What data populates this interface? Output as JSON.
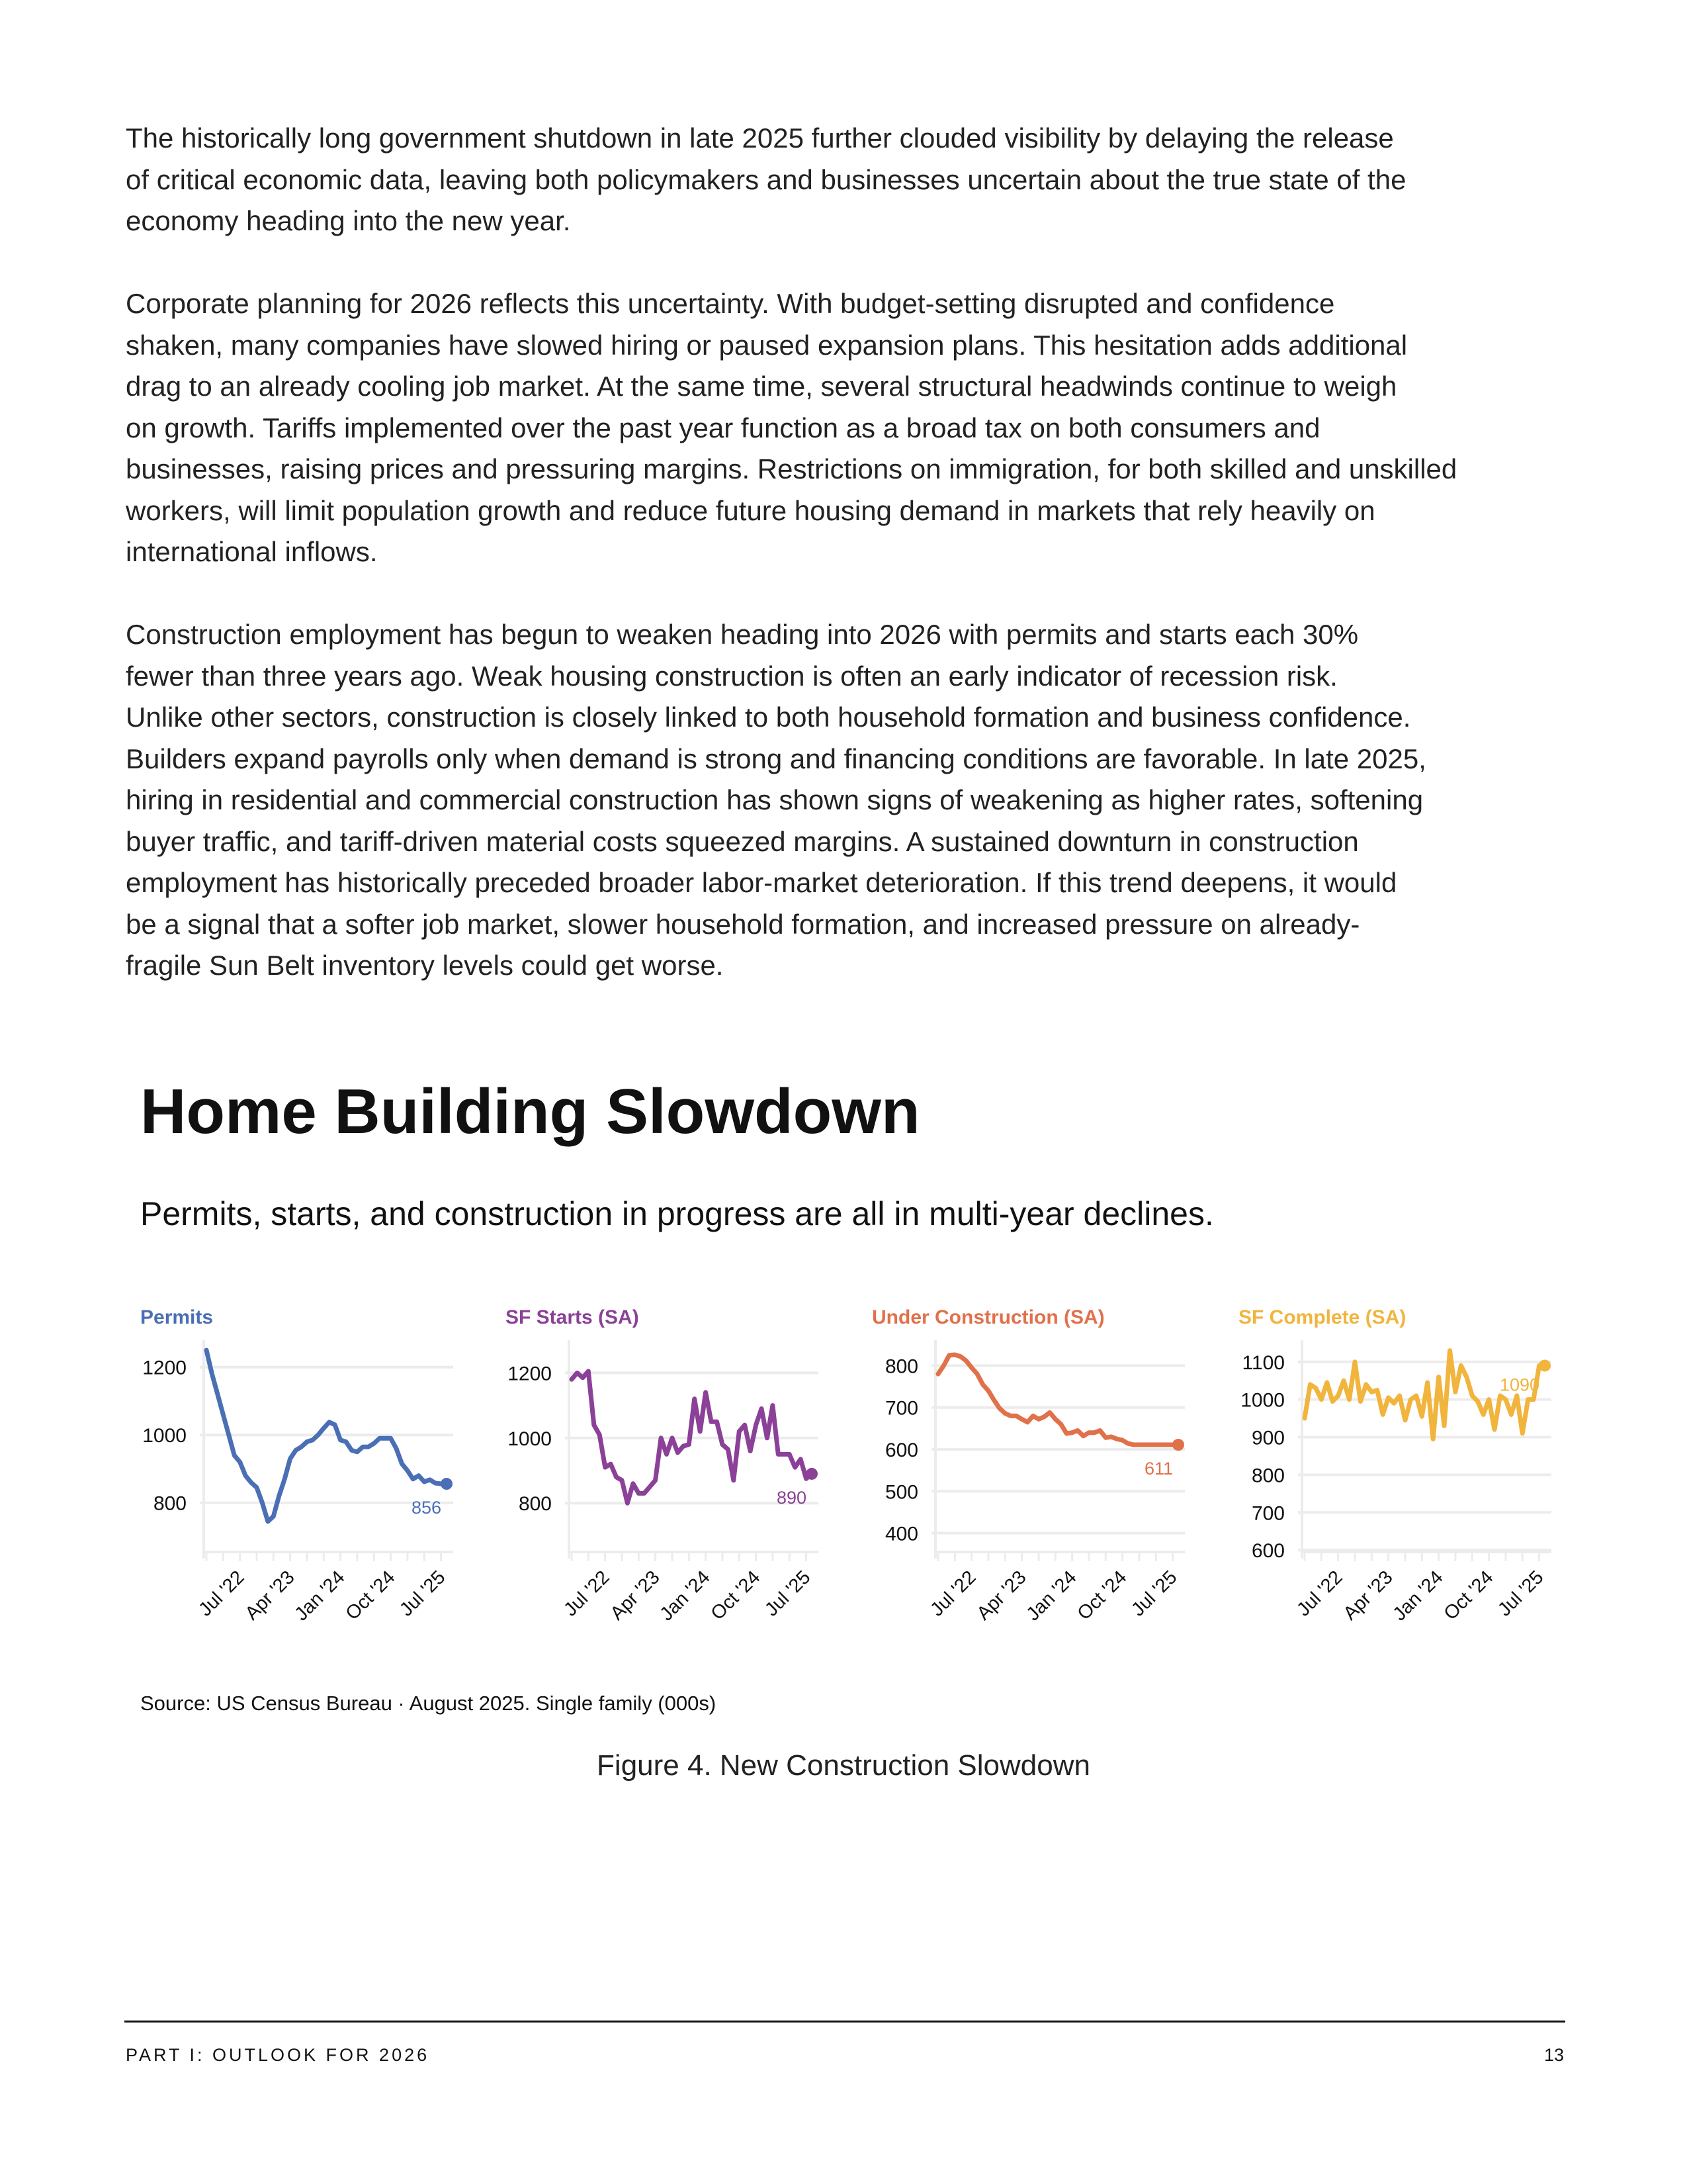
{
  "body": {
    "paragraphs": [
      [
        "The historically long government shutdown in late 2025 further clouded visibility by delaying the release",
        "of critical economic data, leaving both policymakers and businesses uncertain about the true state of the",
        "economy heading into the new year."
      ],
      [
        "Corporate planning for 2026 reflects this uncertainty. With budget-setting disrupted and confidence",
        "shaken, many companies have slowed hiring or paused expansion plans. This hesitation adds additional",
        "drag to an already cooling job market. At the same time, several structural headwinds continue to weigh",
        "on growth. Tariffs implemented over the past year function as a broad tax on both consumers and",
        "businesses, raising prices and pressuring margins. Restrictions on immigration, for both skilled and unskilled",
        "workers, will limit population growth and reduce future housing demand in markets that rely heavily on",
        "international inflows."
      ],
      [
        "Construction employment has begun to weaken heading into 2026 with permits and starts each 30%",
        "fewer than three years ago. Weak housing construction is often an early indicator of recession risk.",
        "Unlike other sectors, construction is closely linked to both household formation and business confidence.",
        "Builders expand payrolls only when demand is strong and financing conditions are favorable. In late 2025,",
        "hiring in residential and commercial construction has shown signs of weakening as higher rates, softening",
        "buyer traffic, and tariff-driven material costs squeezed margins. A sustained downturn in construction",
        "employment has historically preceded broader labor-market deterioration. If this trend deepens, it would",
        "be a signal that a softer job market, slower household formation, and increased pressure on already-",
        "fragile Sun Belt inventory levels could get worse."
      ]
    ]
  },
  "figure": {
    "title": "Home Building Slowdown",
    "subtitle": "Permits, starts, and construction in progress are all in multi-year declines.",
    "source": "Source: US Census Bureau · August 2025. Single family (000s)",
    "caption": "Figure 4. New Construction Slowdown"
  },
  "chart_data": [
    {
      "type": "line",
      "title": "Permits",
      "color": "#4a6fb5",
      "x_start": "Jan 2022",
      "frequency": "monthly",
      "xticks": [
        "Jul '22",
        "Apr '23",
        "Jan '24",
        "Oct '24",
        "Jul '25"
      ],
      "xtick_index": [
        6,
        15,
        24,
        33,
        42
      ],
      "yticks": [
        800,
        1000,
        1200
      ],
      "ylim": [
        655,
        1260
      ],
      "last_label": "856",
      "values": [
        1250,
        1180,
        1120,
        1060,
        1000,
        940,
        920,
        880,
        860,
        845,
        800,
        745,
        760,
        820,
        870,
        930,
        955,
        965,
        980,
        985,
        1000,
        1020,
        1038,
        1030,
        985,
        980,
        955,
        950,
        965,
        965,
        975,
        990,
        990,
        990,
        960,
        915,
        895,
        870,
        880,
        862,
        868,
        858,
        856,
        856
      ]
    },
    {
      "type": "line",
      "title": "SF Starts (SA)",
      "color": "#8b4197",
      "x_start": "Jan 2022",
      "frequency": "monthly",
      "xticks": [
        "Jul '22",
        "Apr '23",
        "Jan '24",
        "Oct '24",
        "Jul '25"
      ],
      "xtick_index": [
        6,
        15,
        24,
        33,
        42
      ],
      "yticks": [
        800,
        1000,
        1200
      ],
      "ylim": [
        650,
        1280
      ],
      "last_label": "890",
      "values": [
        1180,
        1200,
        1185,
        1205,
        1040,
        1010,
        910,
        920,
        880,
        870,
        800,
        860,
        830,
        830,
        850,
        870,
        1000,
        950,
        1000,
        955,
        975,
        980,
        1120,
        1020,
        1140,
        1050,
        1050,
        980,
        965,
        870,
        1020,
        1040,
        960,
        1040,
        1090,
        1000,
        1100,
        950,
        950,
        950,
        910,
        935,
        875,
        890
      ]
    },
    {
      "type": "line",
      "title": "Under Construction (SA)",
      "color": "#e0714b",
      "x_start": "Jan 2022",
      "frequency": "monthly",
      "xticks": [
        "Jul '22",
        "Apr '23",
        "Jan '24",
        "Oct '24",
        "Jul '25"
      ],
      "xtick_index": [
        6,
        15,
        24,
        33,
        42
      ],
      "yticks": [
        400,
        500,
        600,
        700,
        800
      ],
      "ylim": [
        355,
        845
      ],
      "last_label": "611",
      "values": [
        780,
        800,
        825,
        826,
        822,
        812,
        795,
        780,
        755,
        740,
        718,
        698,
        686,
        680,
        680,
        672,
        665,
        680,
        672,
        678,
        688,
        672,
        660,
        638,
        640,
        645,
        632,
        640,
        640,
        645,
        628,
        630,
        625,
        622,
        614,
        611,
        611,
        611,
        611,
        611,
        611,
        611,
        611,
        611
      ]
    },
    {
      "type": "line",
      "title": "SF Complete (SA)",
      "color": "#f1b43d",
      "x_start": "Jan 2022",
      "frequency": "monthly",
      "xticks": [
        "Jul '22",
        "Apr '23",
        "Jan '24",
        "Oct '24",
        "Jul '25"
      ],
      "xtick_index": [
        6,
        15,
        24,
        33,
        42
      ],
      "yticks": [
        600,
        700,
        800,
        900,
        1000,
        1100
      ],
      "ylim": [
        595,
        1140
      ],
      "last_label": "1090",
      "values": [
        950,
        1040,
        1030,
        1000,
        1045,
        995,
        1010,
        1050,
        1000,
        1100,
        995,
        1040,
        1020,
        1025,
        960,
        1005,
        990,
        1010,
        945,
        1000,
        1010,
        955,
        1045,
        895,
        1060,
        930,
        1130,
        1020,
        1090,
        1060,
        1010,
        995,
        960,
        1000,
        920,
        1010,
        1000,
        960,
        1010,
        910,
        1000,
        1000,
        1090,
        1090
      ]
    }
  ],
  "footer": {
    "section": "PART I: OUTLOOK FOR 2026",
    "page_number": "13"
  }
}
